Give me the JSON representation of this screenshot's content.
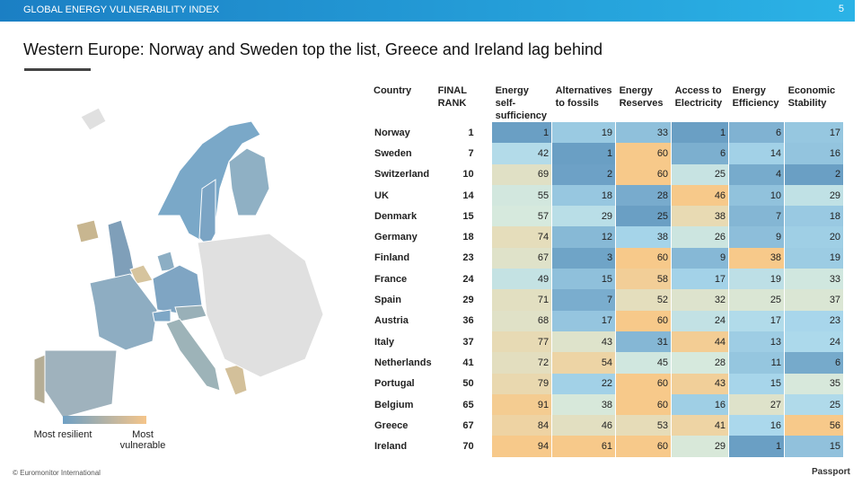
{
  "header": {
    "title": "GLOBAL ENERGY VULNERABILITY INDEX",
    "page": "5"
  },
  "headline": "Western Europe: Norway and Sweden top the list, Greece and Ireland lag behind",
  "legend": {
    "low": "Most resilient",
    "high": "Most vulnerable"
  },
  "table": {
    "columns": [
      "Country",
      "FINAL RANK",
      "Energy self-sufficiency",
      "Alternatives to fossils",
      "Energy Reserves",
      "Access to Electricity",
      "Energy Efficiency",
      "Economic Stability"
    ],
    "rows": [
      [
        "Norway",
        1,
        1,
        19,
        33,
        1,
        6,
        17
      ],
      [
        "Sweden",
        7,
        42,
        1,
        60,
        6,
        14,
        16
      ],
      [
        "Switzerland",
        10,
        69,
        2,
        60,
        25,
        4,
        2
      ],
      [
        "UK",
        14,
        55,
        18,
        28,
        46,
        10,
        29
      ],
      [
        "Denmark",
        15,
        57,
        29,
        25,
        38,
        7,
        18
      ],
      [
        "Germany",
        18,
        74,
        12,
        38,
        26,
        9,
        20
      ],
      [
        "Finland",
        23,
        67,
        3,
        60,
        9,
        38,
        19
      ],
      [
        "France",
        24,
        49,
        15,
        58,
        17,
        19,
        33
      ],
      [
        "Spain",
        29,
        71,
        7,
        52,
        32,
        25,
        37
      ],
      [
        "Austria",
        36,
        68,
        17,
        60,
        24,
        17,
        23
      ],
      [
        "Italy",
        37,
        77,
        43,
        31,
        44,
        13,
        24
      ],
      [
        "Netherlands",
        41,
        72,
        54,
        45,
        28,
        11,
        6
      ],
      [
        "Portugal",
        50,
        79,
        22,
        60,
        43,
        15,
        35
      ],
      [
        "Belgium",
        65,
        91,
        38,
        60,
        16,
        27,
        25
      ],
      [
        "Greece",
        67,
        84,
        46,
        53,
        41,
        16,
        56
      ],
      [
        "Ireland",
        70,
        94,
        61,
        60,
        29,
        1,
        15
      ]
    ]
  },
  "footer": "© Euromonitor International",
  "logo": "Passport"
}
